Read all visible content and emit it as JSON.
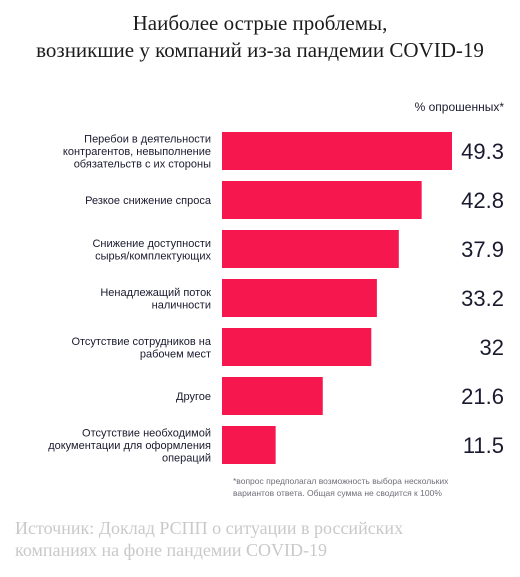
{
  "title_line1": "Наиболее острые проблемы,",
  "title_line2": "возникшие у компаний из-за пандемии COVID-19",
  "unit_label": "% опрошенных*",
  "footnote_line1": "*вопрос предполагал возможность выбора нескольких",
  "footnote_line2": "вариантов ответа. Общая сумма не сводится к 100%",
  "source_line1": "Источник: Доклад РСПП о ситуации в российских",
  "source_line2": "компаниях на фоне пандемии COVID-19",
  "colors": {
    "bar": "#f7174f",
    "value": "#1a1a2e",
    "label": "#1a1a2e"
  },
  "chart_data": {
    "type": "bar",
    "orientation": "horizontal",
    "categories": [
      [
        "Перебои в деятельности",
        "контрагентов, невыполнение",
        "обязательств с их стороны"
      ],
      [
        "Резкое снижение спроса"
      ],
      [
        "Снижение доступности",
        "сырья/комплектующих"
      ],
      [
        "Ненадлежащий поток",
        "наличности"
      ],
      [
        "Отсутствие сотрудников на",
        "рабочем мест"
      ],
      [
        "Другое"
      ],
      [
        "Отсутствие необходимой",
        "документации для оформления",
        "операций"
      ]
    ],
    "values": [
      49.3,
      42.8,
      37.9,
      33.2,
      32,
      21.6,
      11.5
    ],
    "value_labels": [
      "49.3",
      "42.8",
      "37.9",
      "33.2",
      "32",
      "21.6",
      "11.5"
    ],
    "xlim": [
      0,
      49.3
    ],
    "grid": false
  }
}
